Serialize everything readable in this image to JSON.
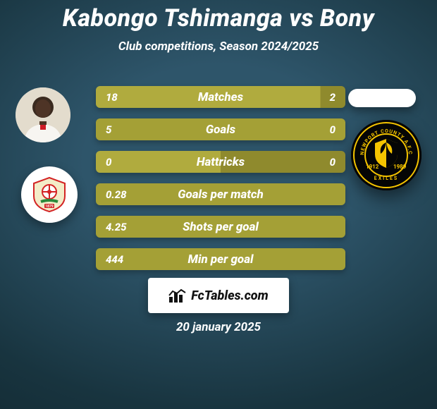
{
  "title": "Kabongo Tshimanga vs Bony",
  "subtitle": "Club competitions, Season 2024/2025",
  "footer_brand": "FcTables.com",
  "footer_date": "20 january 2025",
  "colors": {
    "bar_fill": "#a4a036",
    "bar_two_tone_light": "#b0ab3e",
    "bar_two_tone_dark": "#8f8a2d",
    "text_white": "#ffffff",
    "badge_yellow": "#f5c400",
    "club_red": "#d32324",
    "club_cream": "#f3ecc8"
  },
  "rows": [
    {
      "label": "Matches",
      "left": "18",
      "right": "2",
      "two_tone": true,
      "split_pct": 90
    },
    {
      "label": "Goals",
      "left": "5",
      "right": "0",
      "two_tone": false
    },
    {
      "label": "Hattricks",
      "left": "0",
      "right": "0",
      "two_tone": true,
      "split_pct": 50
    },
    {
      "label": "Goals per match",
      "left": "0.28",
      "right": "",
      "two_tone": false
    },
    {
      "label": "Shots per goal",
      "left": "4.25",
      "right": "",
      "two_tone": false
    },
    {
      "label": "Min per goal",
      "left": "444",
      "right": "",
      "two_tone": false
    }
  ]
}
